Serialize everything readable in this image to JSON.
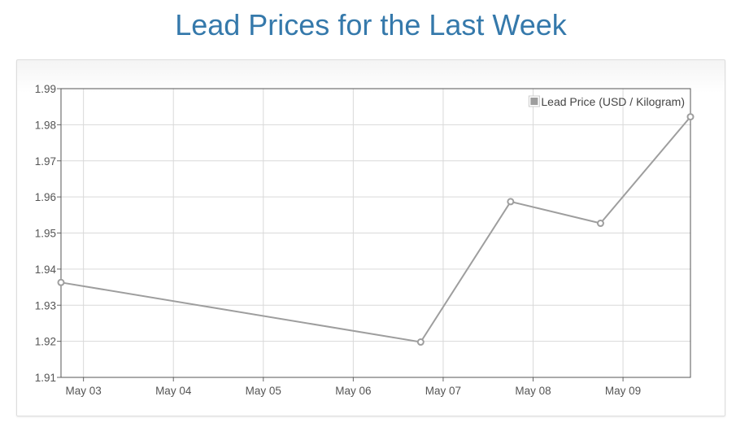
{
  "page": {
    "title": "Lead Prices for the Last Week"
  },
  "chart_data": {
    "type": "line",
    "title": "Lead Prices for the Last Week",
    "xlabel": "",
    "ylabel": "",
    "x_tick_labels": [
      "May 03",
      "May 04",
      "May 05",
      "May 06",
      "May 07",
      "May 08",
      "May 09"
    ],
    "y_tick_labels": [
      "1.91",
      "1.92",
      "1.93",
      "1.94",
      "1.95",
      "1.96",
      "1.97",
      "1.98",
      "1.99"
    ],
    "ylim": [
      1.91,
      1.99
    ],
    "grid": true,
    "legend_position": "top-right",
    "series": [
      {
        "name": "Lead Price (USD / Kilogram)",
        "color": "#9e9e9e",
        "points": [
          {
            "x": "May 02 18:00",
            "y": 1.9363
          },
          {
            "x": "May 06 18:00",
            "y": 1.9198
          },
          {
            "x": "May 07 18:00",
            "y": 1.9587
          },
          {
            "x": "May 08 18:00",
            "y": 1.9527
          },
          {
            "x": "May 09 18:00",
            "y": 1.9822
          }
        ]
      }
    ]
  }
}
